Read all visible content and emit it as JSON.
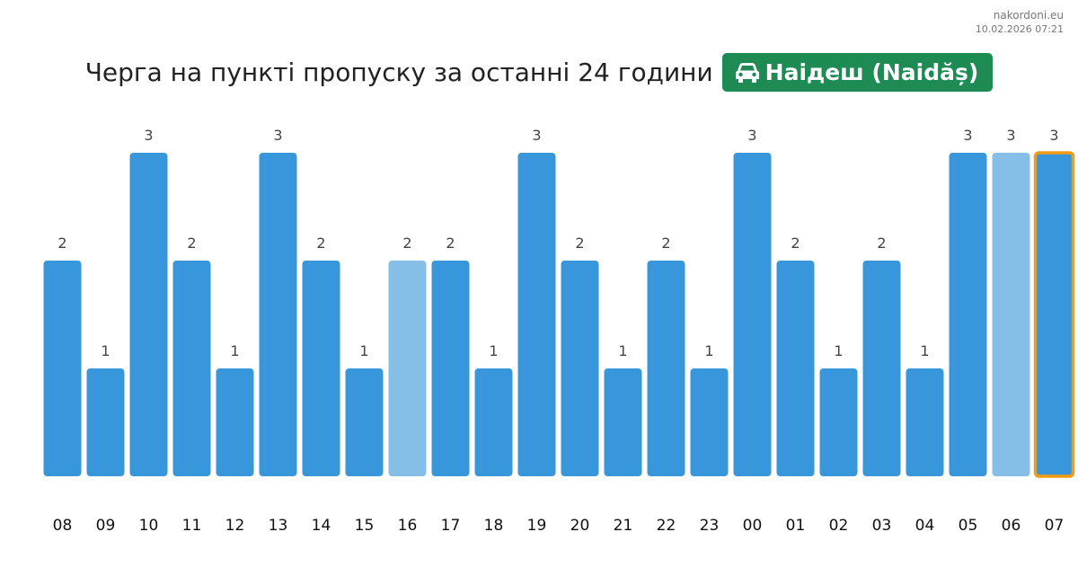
{
  "source": {
    "site": "nakordoni.eu",
    "timestamp": "10.02.2026 07:21"
  },
  "title": "Черга на пункті пропуску за останні 24 години",
  "checkpoint": {
    "name": "Наідеш (Naidăș)",
    "icon": "car-icon",
    "color": "#1e8a54"
  },
  "colors": {
    "bar": "#3897db",
    "bar_light": "#85bfe8",
    "current_outline": "#f39c12",
    "value_label": "#444444",
    "tick_label": "#111111"
  },
  "chart_data": {
    "type": "bar",
    "title": "Черга на пункті пропуску за останні 24 години",
    "xlabel": "",
    "ylabel": "",
    "ylim": [
      0,
      3
    ],
    "grid": false,
    "legend": "none",
    "categories": [
      "08",
      "09",
      "10",
      "11",
      "12",
      "13",
      "14",
      "15",
      "16",
      "17",
      "18",
      "19",
      "20",
      "21",
      "22",
      "23",
      "00",
      "01",
      "02",
      "03",
      "04",
      "05",
      "06",
      "07"
    ],
    "values": [
      2,
      1,
      3,
      2,
      1,
      3,
      2,
      1,
      2,
      2,
      1,
      3,
      2,
      1,
      2,
      1,
      3,
      2,
      1,
      2,
      1,
      3,
      3,
      3
    ],
    "light_bars": [
      "16",
      "06"
    ],
    "highlighted": "07"
  }
}
